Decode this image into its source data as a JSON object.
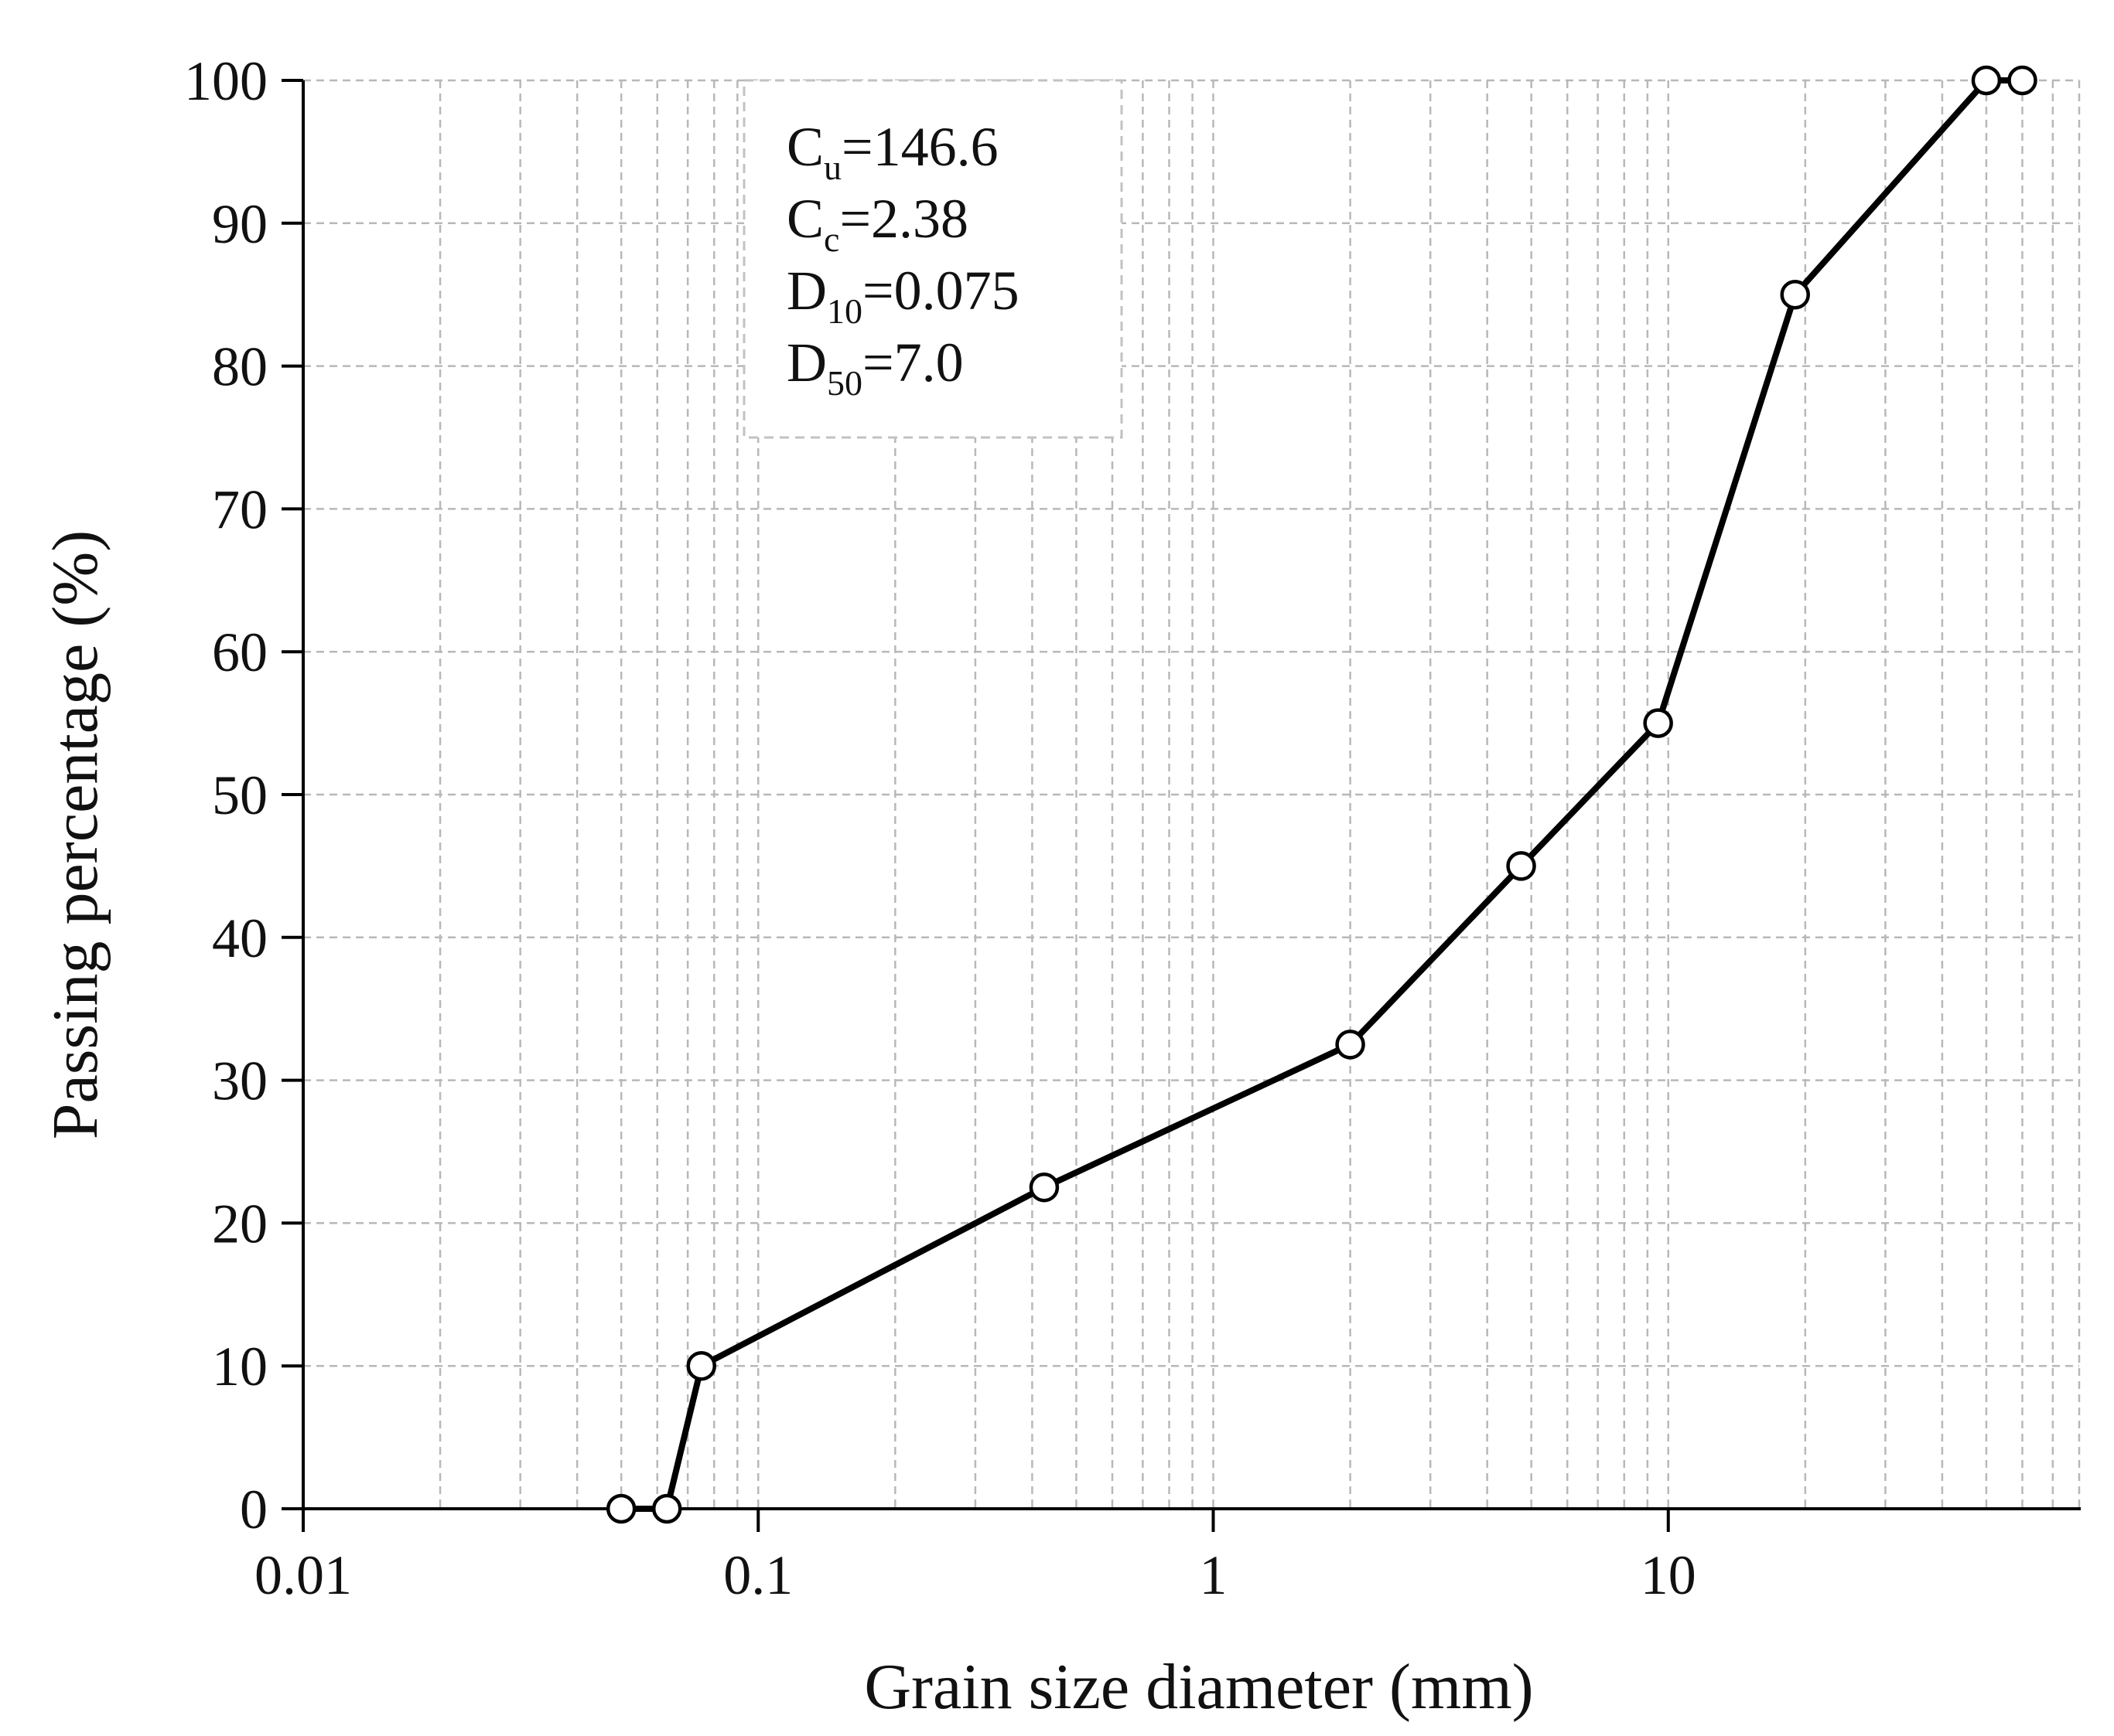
{
  "chart_data": {
    "type": "line",
    "xlabel": "Grain size diameter (mm)",
    "ylabel": "Passing percentage  (%)",
    "x_scale": "log",
    "xlim": [
      0.01,
      80
    ],
    "ylim": [
      0,
      100
    ],
    "x_ticks": [
      0.01,
      0.1,
      1,
      10
    ],
    "x_tick_labels": [
      "0.01",
      "0.1",
      "1",
      "10"
    ],
    "y_ticks": [
      0,
      10,
      20,
      30,
      40,
      50,
      60,
      70,
      80,
      90,
      100
    ],
    "y_tick_labels": [
      "0",
      "10",
      "20",
      "30",
      "40",
      "50",
      "60",
      "70",
      "80",
      "90",
      "100"
    ],
    "grid": true,
    "line_color": "#000000",
    "marker": "open-circle",
    "series": [
      {
        "x": [
          0.05,
          0.063,
          0.075,
          0.425,
          2.0,
          4.75,
          9.5,
          19.0,
          50.0,
          60.0
        ],
        "y": [
          0,
          0,
          10,
          22.5,
          32.5,
          45,
          55,
          85,
          100,
          100
        ]
      }
    ],
    "annotation": {
      "lines": [
        {
          "main": "C",
          "sub": "u",
          "rest": "=146.6"
        },
        {
          "main": "C",
          "sub": "c",
          "rest": "=2.38"
        },
        {
          "main": "D",
          "sub": "10",
          "rest": "=0.075"
        },
        {
          "main": "D",
          "sub": "50",
          "rest": "=7.0"
        }
      ]
    }
  }
}
